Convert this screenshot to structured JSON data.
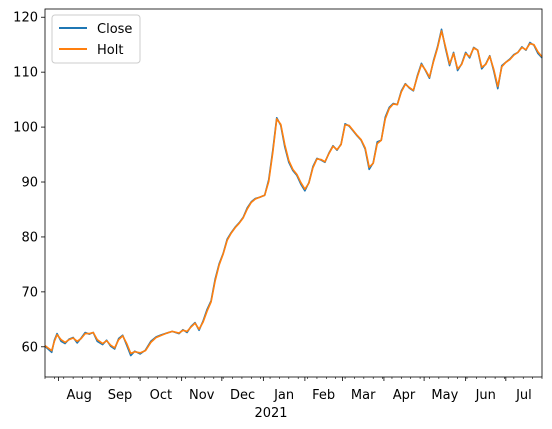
{
  "chart_data": {
    "type": "line",
    "title": "",
    "xlabel": "",
    "ylabel": "",
    "x_range": [
      "2020-07-22",
      "2021-07-28"
    ],
    "ylim": [
      54.5,
      121.5
    ],
    "y_ticks": [
      60,
      70,
      80,
      90,
      100,
      110,
      120
    ],
    "x_ticks": [
      {
        "label": "Aug",
        "date": "2020-08-01"
      },
      {
        "label": "Sep",
        "date": "2020-09-01"
      },
      {
        "label": "Oct",
        "date": "2020-10-01"
      },
      {
        "label": "Nov",
        "date": "2020-11-01"
      },
      {
        "label": "Dec",
        "date": "2020-12-01"
      },
      {
        "label": "Jan",
        "date": "2021-01-01"
      },
      {
        "label": "Feb",
        "date": "2021-02-01"
      },
      {
        "label": "Mar",
        "date": "2021-03-01"
      },
      {
        "label": "Apr",
        "date": "2021-04-01"
      },
      {
        "label": "May",
        "date": "2021-05-01"
      },
      {
        "label": "Jun",
        "date": "2021-06-01"
      },
      {
        "label": "Jul",
        "date": "2021-07-01"
      }
    ],
    "x_secondary_label": "2021",
    "grid": false,
    "legend_position": "upper-left",
    "series": [
      {
        "name": "Close",
        "color": "#1f77b4",
        "points": [
          [
            "2020-07-22",
            60.1
          ],
          [
            "2020-07-27",
            59.0
          ],
          [
            "2020-07-29",
            61.2
          ],
          [
            "2020-07-31",
            62.4
          ],
          [
            "2020-08-03",
            61.0
          ],
          [
            "2020-08-06",
            60.6
          ],
          [
            "2020-08-09",
            61.4
          ],
          [
            "2020-08-12",
            61.7
          ],
          [
            "2020-08-15",
            60.7
          ],
          [
            "2020-08-18",
            61.6
          ],
          [
            "2020-08-21",
            62.6
          ],
          [
            "2020-08-24",
            62.3
          ],
          [
            "2020-08-27",
            62.6
          ],
          [
            "2020-08-30",
            61.0
          ],
          [
            "2020-09-03",
            60.4
          ],
          [
            "2020-09-06",
            61.2
          ],
          [
            "2020-09-09",
            60.1
          ],
          [
            "2020-09-12",
            59.6
          ],
          [
            "2020-09-15",
            61.5
          ],
          [
            "2020-09-18",
            62.1
          ],
          [
            "2020-09-21",
            60.3
          ],
          [
            "2020-09-24",
            58.4
          ],
          [
            "2020-09-27",
            59.2
          ],
          [
            "2020-10-01",
            58.7
          ],
          [
            "2020-10-05",
            59.4
          ],
          [
            "2020-10-09",
            61.0
          ],
          [
            "2020-10-13",
            61.8
          ],
          [
            "2020-10-17",
            62.2
          ],
          [
            "2020-10-21",
            62.5
          ],
          [
            "2020-10-25",
            62.8
          ],
          [
            "2020-10-30",
            62.4
          ],
          [
            "2020-11-02",
            63.1
          ],
          [
            "2020-11-05",
            62.6
          ],
          [
            "2020-11-08",
            63.7
          ],
          [
            "2020-11-11",
            64.4
          ],
          [
            "2020-11-14",
            63.0
          ],
          [
            "2020-11-17",
            64.7
          ],
          [
            "2020-11-20",
            66.8
          ],
          [
            "2020-11-23",
            68.4
          ],
          [
            "2020-11-26",
            72.3
          ],
          [
            "2020-11-29",
            75.1
          ],
          [
            "2020-12-02",
            77.0
          ],
          [
            "2020-12-05",
            79.6
          ],
          [
            "2020-12-08",
            80.8
          ],
          [
            "2020-12-11",
            81.8
          ],
          [
            "2020-12-14",
            82.6
          ],
          [
            "2020-12-17",
            83.6
          ],
          [
            "2020-12-20",
            85.3
          ],
          [
            "2020-12-23",
            86.4
          ],
          [
            "2020-12-26",
            87.0
          ],
          [
            "2020-12-29",
            87.2
          ],
          [
            "2021-01-02",
            87.6
          ],
          [
            "2021-01-05",
            90.4
          ],
          [
            "2021-01-08",
            95.7
          ],
          [
            "2021-01-11",
            101.7
          ],
          [
            "2021-01-14",
            100.3
          ],
          [
            "2021-01-17",
            96.4
          ],
          [
            "2021-01-20",
            93.6
          ],
          [
            "2021-01-23",
            92.1
          ],
          [
            "2021-01-26",
            91.2
          ],
          [
            "2021-01-29",
            89.6
          ],
          [
            "2021-02-01",
            88.4
          ],
          [
            "2021-02-04",
            89.9
          ],
          [
            "2021-02-07",
            92.8
          ],
          [
            "2021-02-10",
            94.3
          ],
          [
            "2021-02-13",
            94.0
          ],
          [
            "2021-02-16",
            93.6
          ],
          [
            "2021-02-19",
            95.3
          ],
          [
            "2021-02-22",
            96.6
          ],
          [
            "2021-02-25",
            95.8
          ],
          [
            "2021-02-28",
            96.9
          ],
          [
            "2021-03-03",
            100.6
          ],
          [
            "2021-03-06",
            100.2
          ],
          [
            "2021-03-09",
            99.3
          ],
          [
            "2021-03-12",
            98.4
          ],
          [
            "2021-03-15",
            97.6
          ],
          [
            "2021-03-18",
            96.0
          ],
          [
            "2021-03-21",
            92.3
          ],
          [
            "2021-03-24",
            93.5
          ],
          [
            "2021-03-27",
            97.3
          ],
          [
            "2021-03-30",
            97.6
          ],
          [
            "2021-04-02",
            101.8
          ],
          [
            "2021-04-05",
            103.6
          ],
          [
            "2021-04-08",
            104.3
          ],
          [
            "2021-04-11",
            104.1
          ],
          [
            "2021-04-14",
            106.6
          ],
          [
            "2021-04-17",
            107.9
          ],
          [
            "2021-04-20",
            107.1
          ],
          [
            "2021-04-23",
            106.6
          ],
          [
            "2021-04-26",
            109.4
          ],
          [
            "2021-04-29",
            111.6
          ],
          [
            "2021-05-02",
            110.3
          ],
          [
            "2021-05-05",
            108.9
          ],
          [
            "2021-05-08",
            112.1
          ],
          [
            "2021-05-11",
            114.6
          ],
          [
            "2021-05-14",
            117.8
          ],
          [
            "2021-05-17",
            114.3
          ],
          [
            "2021-05-20",
            111.2
          ],
          [
            "2021-05-23",
            113.6
          ],
          [
            "2021-05-26",
            110.3
          ],
          [
            "2021-05-29",
            111.5
          ],
          [
            "2021-06-01",
            113.6
          ],
          [
            "2021-06-04",
            112.6
          ],
          [
            "2021-06-07",
            114.5
          ],
          [
            "2021-06-10",
            114.0
          ],
          [
            "2021-06-13",
            110.6
          ],
          [
            "2021-06-16",
            111.5
          ],
          [
            "2021-06-19",
            113.0
          ],
          [
            "2021-06-22",
            110.2
          ],
          [
            "2021-06-25",
            107.0
          ],
          [
            "2021-06-28",
            111.2
          ],
          [
            "2021-07-01",
            111.8
          ],
          [
            "2021-07-04",
            112.4
          ],
          [
            "2021-07-07",
            113.2
          ],
          [
            "2021-07-10",
            113.6
          ],
          [
            "2021-07-13",
            114.6
          ],
          [
            "2021-07-16",
            114.0
          ],
          [
            "2021-07-19",
            115.4
          ],
          [
            "2021-07-22",
            114.9
          ],
          [
            "2021-07-25",
            113.4
          ],
          [
            "2021-07-28",
            112.6
          ]
        ]
      },
      {
        "name": "Holt",
        "color": "#ff7f0e",
        "points": [
          [
            "2020-07-22",
            60.2
          ],
          [
            "2020-07-27",
            59.3
          ],
          [
            "2020-07-29",
            61.0
          ],
          [
            "2020-07-31",
            62.2
          ],
          [
            "2020-08-03",
            61.3
          ],
          [
            "2020-08-06",
            60.8
          ],
          [
            "2020-08-09",
            61.3
          ],
          [
            "2020-08-12",
            61.6
          ],
          [
            "2020-08-15",
            61.0
          ],
          [
            "2020-08-18",
            61.5
          ],
          [
            "2020-08-21",
            62.4
          ],
          [
            "2020-08-24",
            62.4
          ],
          [
            "2020-08-27",
            62.6
          ],
          [
            "2020-08-30",
            61.3
          ],
          [
            "2020-09-03",
            60.6
          ],
          [
            "2020-09-06",
            61.1
          ],
          [
            "2020-09-09",
            60.3
          ],
          [
            "2020-09-12",
            59.8
          ],
          [
            "2020-09-15",
            61.3
          ],
          [
            "2020-09-18",
            62.0
          ],
          [
            "2020-09-21",
            60.6
          ],
          [
            "2020-09-24",
            58.8
          ],
          [
            "2020-09-27",
            59.1
          ],
          [
            "2020-10-01",
            58.9
          ],
          [
            "2020-10-05",
            59.3
          ],
          [
            "2020-10-09",
            60.8
          ],
          [
            "2020-10-13",
            61.7
          ],
          [
            "2020-10-17",
            62.1
          ],
          [
            "2020-10-21",
            62.5
          ],
          [
            "2020-10-25",
            62.8
          ],
          [
            "2020-10-30",
            62.5
          ],
          [
            "2020-11-02",
            63.0
          ],
          [
            "2020-11-05",
            62.8
          ],
          [
            "2020-11-08",
            63.6
          ],
          [
            "2020-11-11",
            64.3
          ],
          [
            "2020-11-14",
            63.2
          ],
          [
            "2020-11-17",
            64.5
          ],
          [
            "2020-11-20",
            66.5
          ],
          [
            "2020-11-23",
            68.2
          ],
          [
            "2020-11-26",
            72.0
          ],
          [
            "2020-11-29",
            74.9
          ],
          [
            "2020-12-02",
            76.9
          ],
          [
            "2020-12-05",
            79.4
          ],
          [
            "2020-12-08",
            80.7
          ],
          [
            "2020-12-11",
            81.7
          ],
          [
            "2020-12-14",
            82.5
          ],
          [
            "2020-12-17",
            83.5
          ],
          [
            "2020-12-20",
            85.1
          ],
          [
            "2020-12-23",
            86.3
          ],
          [
            "2020-12-26",
            86.9
          ],
          [
            "2020-12-29",
            87.2
          ],
          [
            "2021-01-02",
            87.6
          ],
          [
            "2021-01-05",
            90.1
          ],
          [
            "2021-01-08",
            95.3
          ],
          [
            "2021-01-11",
            101.5
          ],
          [
            "2021-01-14",
            100.5
          ],
          [
            "2021-01-17",
            96.8
          ],
          [
            "2021-01-20",
            93.9
          ],
          [
            "2021-01-23",
            92.3
          ],
          [
            "2021-01-26",
            91.4
          ],
          [
            "2021-01-29",
            89.9
          ],
          [
            "2021-02-01",
            88.7
          ],
          [
            "2021-02-04",
            89.8
          ],
          [
            "2021-02-07",
            92.6
          ],
          [
            "2021-02-10",
            94.2
          ],
          [
            "2021-02-13",
            94.1
          ],
          [
            "2021-02-16",
            93.7
          ],
          [
            "2021-02-19",
            95.2
          ],
          [
            "2021-02-22",
            96.5
          ],
          [
            "2021-02-25",
            95.9
          ],
          [
            "2021-02-28",
            96.8
          ],
          [
            "2021-03-03",
            100.4
          ],
          [
            "2021-03-06",
            100.3
          ],
          [
            "2021-03-09",
            99.4
          ],
          [
            "2021-03-12",
            98.5
          ],
          [
            "2021-03-15",
            97.7
          ],
          [
            "2021-03-18",
            96.2
          ],
          [
            "2021-03-21",
            92.7
          ],
          [
            "2021-03-24",
            93.4
          ],
          [
            "2021-03-27",
            97.0
          ],
          [
            "2021-03-30",
            97.6
          ],
          [
            "2021-04-02",
            101.5
          ],
          [
            "2021-04-05",
            103.4
          ],
          [
            "2021-04-08",
            104.2
          ],
          [
            "2021-04-11",
            104.1
          ],
          [
            "2021-04-14",
            106.4
          ],
          [
            "2021-04-17",
            107.8
          ],
          [
            "2021-04-20",
            107.2
          ],
          [
            "2021-04-23",
            106.7
          ],
          [
            "2021-04-26",
            109.2
          ],
          [
            "2021-04-29",
            111.4
          ],
          [
            "2021-05-02",
            110.4
          ],
          [
            "2021-05-05",
            109.1
          ],
          [
            "2021-05-08",
            111.9
          ],
          [
            "2021-05-11",
            114.4
          ],
          [
            "2021-05-14",
            117.5
          ],
          [
            "2021-05-17",
            114.6
          ],
          [
            "2021-05-20",
            111.5
          ],
          [
            "2021-05-23",
            113.4
          ],
          [
            "2021-05-26",
            110.6
          ],
          [
            "2021-05-29",
            111.4
          ],
          [
            "2021-06-01",
            113.4
          ],
          [
            "2021-06-04",
            112.8
          ],
          [
            "2021-06-07",
            114.4
          ],
          [
            "2021-06-10",
            114.0
          ],
          [
            "2021-06-13",
            110.9
          ],
          [
            "2021-06-16",
            111.4
          ],
          [
            "2021-06-19",
            112.9
          ],
          [
            "2021-06-22",
            110.5
          ],
          [
            "2021-06-25",
            107.4
          ],
          [
            "2021-06-28",
            111.0
          ],
          [
            "2021-07-01",
            111.8
          ],
          [
            "2021-07-04",
            112.3
          ],
          [
            "2021-07-07",
            113.1
          ],
          [
            "2021-07-10",
            113.6
          ],
          [
            "2021-07-13",
            114.5
          ],
          [
            "2021-07-16",
            114.1
          ],
          [
            "2021-07-19",
            115.2
          ],
          [
            "2021-07-22",
            115.0
          ],
          [
            "2021-07-25",
            113.7
          ],
          [
            "2021-07-28",
            112.8
          ]
        ]
      }
    ]
  }
}
